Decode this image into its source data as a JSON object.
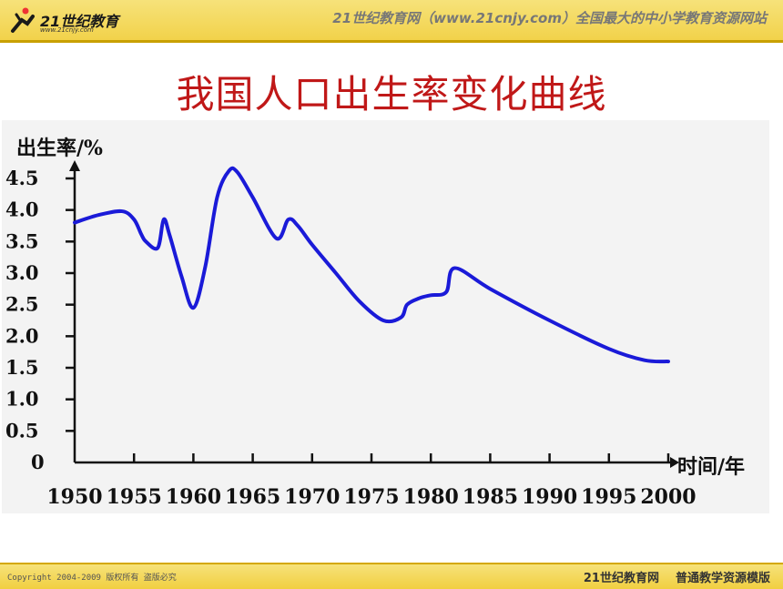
{
  "header": {
    "logo_text": "21世纪教育",
    "logo_url": "www.21cnjy.com",
    "tagline": "21世纪教育网（www.21cnjy.com）全国最大的中小学教育资源网站"
  },
  "title": "我国人口出生率变化曲线",
  "chart_data": {
    "type": "line",
    "title": "",
    "ylabel": "出生率/%",
    "xlabel": "时间/年",
    "xlim": [
      1950,
      2000
    ],
    "ylim": [
      0,
      4.5
    ],
    "x_ticks": [
      1950,
      1955,
      1960,
      1965,
      1970,
      1975,
      1980,
      1985,
      1990,
      1995,
      2000
    ],
    "x_tick_labels": [
      "1950",
      "1955",
      "1960",
      "1965",
      "1970",
      "1975",
      "1980",
      "1985",
      "1990",
      "1995",
      "2000"
    ],
    "y_ticks": [
      0,
      0.5,
      1.0,
      1.5,
      2.0,
      2.5,
      3.0,
      3.5,
      4.0,
      4.5
    ],
    "y_tick_labels": [
      "0",
      "0.5",
      "1.0",
      "1.5",
      "2.0",
      "2.5",
      "3.0",
      "3.5",
      "4.0",
      "4.5"
    ],
    "line_color": "#1a1ad8",
    "series": [
      {
        "x": [
          1950,
          1952,
          1954,
          1955,
          1955.6,
          1956,
          1957,
          1957.5,
          1958,
          1959,
          1960,
          1961,
          1962,
          1963,
          1963.7,
          1965,
          1967,
          1968,
          1968.8,
          1970,
          1972,
          1974,
          1976,
          1977.5,
          1978,
          1979,
          1980,
          1981.3,
          1982,
          1985,
          1990,
          1995,
          1998,
          2000
        ],
        "y": [
          3.8,
          3.92,
          3.98,
          3.85,
          3.62,
          3.5,
          3.4,
          3.85,
          3.6,
          2.95,
          2.45,
          3.1,
          4.2,
          4.62,
          4.6,
          4.2,
          3.55,
          3.85,
          3.75,
          3.45,
          3.0,
          2.55,
          2.25,
          2.3,
          2.5,
          2.6,
          2.65,
          2.7,
          3.08,
          2.75,
          2.25,
          1.8,
          1.62,
          1.6
        ]
      }
    ]
  },
  "footer": {
    "copyright": "Copyright 2004-2009 版权所有 盗版必究",
    "brand": "21世纪教育网",
    "template": "普通教学资源模版"
  }
}
